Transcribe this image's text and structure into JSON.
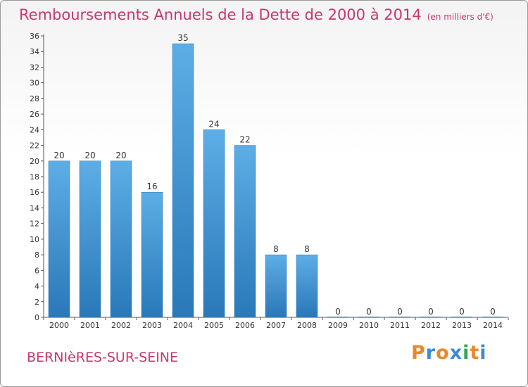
{
  "header": {
    "title": "Remboursements Annuels de la Dette de 2000 à 2014",
    "unit": "(en milliers d'€)"
  },
  "footer": {
    "commune": "BERNIèRES-SUR-SEINE",
    "logo": "Proxiti"
  },
  "colors": {
    "bar_top": "#5dade6",
    "bar_bottom": "#2a78b8",
    "title": "#c8376e",
    "logo": [
      "#e8892a",
      "#3a8bd6",
      "#e8892a",
      "#3a8bd6",
      "#2fa84f",
      "#e8892a",
      "#3a8bd6"
    ]
  },
  "chart_data": {
    "type": "bar",
    "title": "Remboursements Annuels de la Dette de 2000 à 2014",
    "subtitle": "(en milliers d'€)",
    "categories": [
      "2000",
      "2001",
      "2002",
      "2003",
      "2004",
      "2005",
      "2006",
      "2007",
      "2008",
      "2009",
      "2010",
      "2011",
      "2012",
      "2013",
      "2014"
    ],
    "values": [
      20,
      20,
      20,
      16,
      35,
      24,
      22,
      8,
      8,
      0,
      0,
      0,
      0,
      0,
      0
    ],
    "ylim": [
      0,
      36
    ],
    "yticks": [
      0,
      2,
      4,
      6,
      8,
      10,
      12,
      14,
      16,
      18,
      20,
      22,
      24,
      26,
      28,
      30,
      32,
      34,
      36
    ],
    "xlabel": "",
    "ylabel": "",
    "grid": false,
    "legend": "none"
  }
}
